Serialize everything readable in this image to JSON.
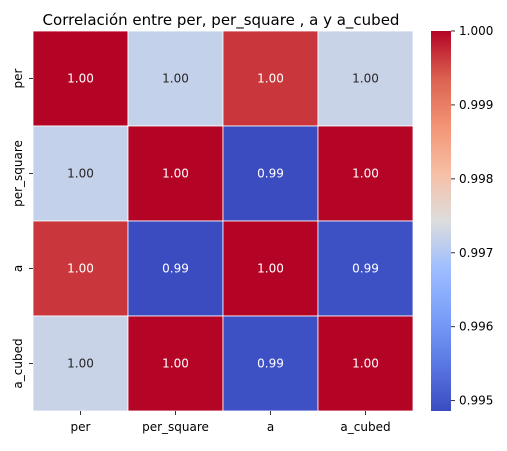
{
  "chart_data": {
    "type": "heatmap",
    "title": "Correlación entre per, per_square , a y a_cubed",
    "row_labels": [
      "per",
      "per_square",
      "a",
      "a_cubed"
    ],
    "col_labels": [
      "per",
      "per_square",
      "a",
      "a_cubed"
    ],
    "values": [
      [
        1.0,
        0.99718,
        0.99965,
        0.99722
      ],
      [
        0.99718,
        1.0,
        0.99486,
        0.99999
      ],
      [
        0.99965,
        0.99486,
        1.0,
        0.99493
      ],
      [
        0.99722,
        0.99999,
        0.99493,
        1.0
      ]
    ],
    "annotations": [
      [
        "1.00",
        "1.00",
        "1.00",
        "1.00"
      ],
      [
        "1.00",
        "1.00",
        "0.99",
        "1.00"
      ],
      [
        "1.00",
        "0.99",
        "1.00",
        "0.99"
      ],
      [
        "1.00",
        "1.00",
        "0.99",
        "1.00"
      ]
    ],
    "colorbar": {
      "colormap": "coolwarm",
      "vmin": 0.99486,
      "vmax": 1.0,
      "ticks": [
        1.0,
        0.999,
        0.998,
        0.997,
        0.996,
        0.995
      ],
      "tick_labels": [
        "1.000",
        "0.999",
        "0.998",
        "0.997",
        "0.996",
        "0.995"
      ]
    },
    "cell_border_color": "#ffffff"
  }
}
